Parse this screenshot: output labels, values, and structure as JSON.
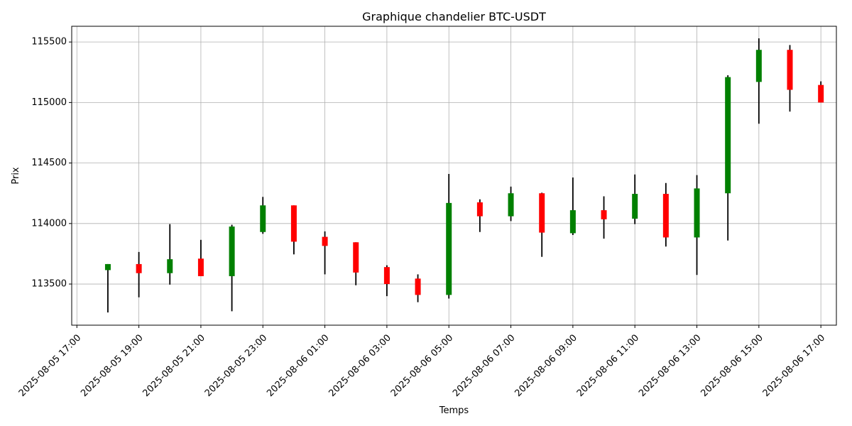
{
  "chart_data": {
    "type": "candlestick",
    "title": "Graphique chandelier BTC-USDT",
    "xlabel": "Temps",
    "ylabel": "Prix",
    "ylim": [
      113160,
      115630
    ],
    "xlim": [
      "2025-08-05 16:50",
      "2025-08-06 17:30"
    ],
    "grid": true,
    "x_ticks": [
      "2025-08-05 17:00",
      "2025-08-05 19:00",
      "2025-08-05 21:00",
      "2025-08-05 23:00",
      "2025-08-06 01:00",
      "2025-08-06 03:00",
      "2025-08-06 05:00",
      "2025-08-06 07:00",
      "2025-08-06 09:00",
      "2025-08-06 11:00",
      "2025-08-06 13:00",
      "2025-08-06 15:00",
      "2025-08-06 17:00"
    ],
    "y_ticks": [
      113500,
      114000,
      114500,
      115000,
      115500
    ],
    "colors": {
      "up": "#008000",
      "down": "#ff0000",
      "wick": "#000000"
    },
    "candles": [
      {
        "t": "2025-08-05 18:00",
        "open": 113615,
        "high": 113665,
        "low": 113265,
        "close": 113665
      },
      {
        "t": "2025-08-05 19:00",
        "open": 113665,
        "high": 113765,
        "low": 113390,
        "close": 113590
      },
      {
        "t": "2025-08-05 20:00",
        "open": 113590,
        "high": 113995,
        "low": 113495,
        "close": 113705
      },
      {
        "t": "2025-08-05 21:00",
        "open": 113710,
        "high": 113865,
        "low": 113565,
        "close": 113565
      },
      {
        "t": "2025-08-05 22:00",
        "open": 113565,
        "high": 113990,
        "low": 113275,
        "close": 113975
      },
      {
        "t": "2025-08-05 23:00",
        "open": 113930,
        "high": 114220,
        "low": 113915,
        "close": 114150
      },
      {
        "t": "2025-08-06 00:00",
        "open": 114150,
        "high": 114150,
        "low": 113745,
        "close": 113850
      },
      {
        "t": "2025-08-06 01:00",
        "open": 113890,
        "high": 113935,
        "low": 113580,
        "close": 113815
      },
      {
        "t": "2025-08-06 02:00",
        "open": 113845,
        "high": 113845,
        "low": 113490,
        "close": 113595
      },
      {
        "t": "2025-08-06 03:00",
        "open": 113640,
        "high": 113655,
        "low": 113400,
        "close": 113500
      },
      {
        "t": "2025-08-06 04:00",
        "open": 113545,
        "high": 113580,
        "low": 113350,
        "close": 113410
      },
      {
        "t": "2025-08-06 05:00",
        "open": 113410,
        "high": 114410,
        "low": 113380,
        "close": 114170
      },
      {
        "t": "2025-08-06 06:00",
        "open": 114175,
        "high": 114200,
        "low": 113930,
        "close": 114060
      },
      {
        "t": "2025-08-06 07:00",
        "open": 114060,
        "high": 114305,
        "low": 114020,
        "close": 114250
      },
      {
        "t": "2025-08-06 08:00",
        "open": 114250,
        "high": 114255,
        "low": 113725,
        "close": 113925
      },
      {
        "t": "2025-08-06 09:00",
        "open": 113920,
        "high": 114380,
        "low": 113905,
        "close": 114110
      },
      {
        "t": "2025-08-06 10:00",
        "open": 114110,
        "high": 114225,
        "low": 113875,
        "close": 114035
      },
      {
        "t": "2025-08-06 11:00",
        "open": 114040,
        "high": 114405,
        "low": 113995,
        "close": 114245
      },
      {
        "t": "2025-08-06 12:00",
        "open": 114245,
        "high": 114335,
        "low": 113810,
        "close": 113885
      },
      {
        "t": "2025-08-06 13:00",
        "open": 113885,
        "high": 114400,
        "low": 113575,
        "close": 114290
      },
      {
        "t": "2025-08-06 14:00",
        "open": 114250,
        "high": 115225,
        "low": 113860,
        "close": 115210
      },
      {
        "t": "2025-08-06 15:00",
        "open": 115170,
        "high": 115530,
        "low": 114825,
        "close": 115435
      },
      {
        "t": "2025-08-06 16:00",
        "open": 115435,
        "high": 115475,
        "low": 114925,
        "close": 115105
      },
      {
        "t": "2025-08-06 17:00",
        "open": 115145,
        "high": 115175,
        "low": 115000,
        "close": 115000
      }
    ]
  }
}
